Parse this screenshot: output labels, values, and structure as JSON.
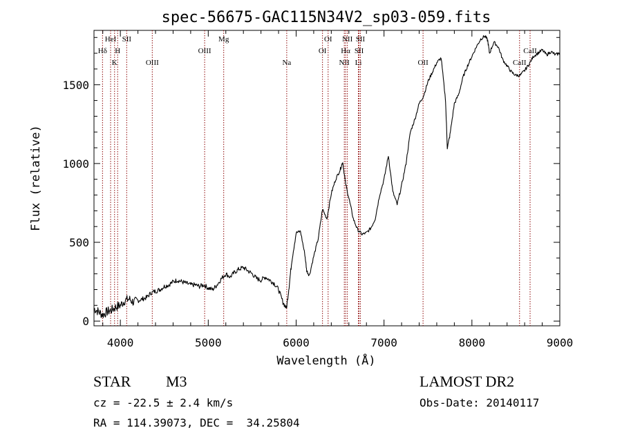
{
  "chart_data": {
    "type": "line",
    "title": "spec-56675-GAC115N34V2_sp03-059.fits",
    "xlabel": "Wavelength (Å)",
    "ylabel": "Flux (relative)",
    "xlim": [
      3700,
      9000
    ],
    "ylim": [
      -30,
      1845
    ],
    "x_ticks": [
      4000,
      5000,
      6000,
      7000,
      8000,
      9000
    ],
    "y_ticks": [
      0,
      500,
      1000,
      1500
    ],
    "grid": false,
    "series": [
      {
        "x": [
          3700,
          3750,
          3800,
          3850,
          3900,
          3950,
          4000,
          4050,
          4100,
          4150,
          4200,
          4250,
          4300,
          4350,
          4400,
          4450,
          4500,
          4550,
          4600,
          4650,
          4700,
          4750,
          4800,
          4850,
          4900,
          4950,
          5000,
          5050,
          5100,
          5150,
          5200,
          5250,
          5300,
          5350,
          5400,
          5450,
          5500,
          5550,
          5600,
          5650,
          5700,
          5750,
          5800,
          5850,
          5890,
          5920,
          5950,
          6000,
          6050,
          6100,
          6120,
          6150,
          6200,
          6250,
          6300,
          6350,
          6400,
          6450,
          6500,
          6530,
          6560,
          6600,
          6650,
          6700,
          6750,
          6800,
          6850,
          6900,
          6950,
          7000,
          7050,
          7100,
          7150,
          7200,
          7250,
          7300,
          7350,
          7400,
          7450,
          7500,
          7550,
          7600,
          7650,
          7700,
          7720,
          7750,
          7800,
          7850,
          7900,
          7950,
          8000,
          8050,
          8100,
          8150,
          8180,
          8200,
          8250,
          8300,
          8350,
          8400,
          8450,
          8500,
          8550,
          8600,
          8650,
          8700,
          8750,
          8800,
          8850,
          8900,
          8950,
          9000
        ],
        "y": [
          80,
          60,
          40,
          60,
          70,
          90,
          100,
          130,
          140,
          120,
          130,
          140,
          150,
          180,
          190,
          200,
          220,
          230,
          250,
          260,
          250,
          240,
          230,
          230,
          220,
          230,
          210,
          200,
          230,
          270,
          300,
          280,
          310,
          330,
          340,
          320,
          300,
          270,
          260,
          280,
          260,
          240,
          200,
          120,
          80,
          220,
          380,
          560,
          570,
          420,
          320,
          290,
          410,
          520,
          710,
          650,
          810,
          900,
          960,
          1010,
          880,
          780,
          650,
          580,
          550,
          560,
          590,
          650,
          800,
          900,
          1050,
          820,
          740,
          860,
          1000,
          1200,
          1280,
          1380,
          1430,
          1520,
          1580,
          1640,
          1670,
          1400,
          1100,
          1180,
          1380,
          1440,
          1550,
          1620,
          1680,
          1740,
          1790,
          1810,
          1780,
          1700,
          1770,
          1740,
          1660,
          1620,
          1580,
          1560,
          1560,
          1590,
          1630,
          1680,
          1700,
          1720,
          1690,
          1710,
          1690,
          1700
        ]
      }
    ],
    "lines": [
      {
        "x": 3797,
        "label": "Hδ",
        "row": 2
      },
      {
        "x": 3889,
        "label": "HeI",
        "row": 0
      },
      {
        "x": 3934,
        "label": "K",
        "row": 3
      },
      {
        "x": 3969,
        "label": "H",
        "row": 2
      },
      {
        "x": 4072,
        "label": "SII",
        "row": 0
      },
      {
        "x": 4363,
        "label": "OIII",
        "row": 3
      },
      {
        "x": 4959,
        "label": "OIII",
        "row": 2
      },
      {
        "x": 5176,
        "label": "Mg",
        "row": 0
      },
      {
        "x": 5893,
        "label": "Na",
        "row": 3
      },
      {
        "x": 6300,
        "label": "OI",
        "row": 2
      },
      {
        "x": 6364,
        "label": "OI",
        "row": 0
      },
      {
        "x": 6548,
        "label": "NII",
        "row": 3
      },
      {
        "x": 6563,
        "label": "Hα",
        "row": 2
      },
      {
        "x": 6583,
        "label": "NII",
        "row": 0
      },
      {
        "x": 6708,
        "label": "Li",
        "row": 3
      },
      {
        "x": 6716,
        "label": "SII",
        "row": 2
      },
      {
        "x": 6731,
        "label": "SII",
        "row": 0
      },
      {
        "x": 7444,
        "label": "OII",
        "row": 3
      },
      {
        "x": 8542,
        "label": "CaII",
        "row": 3
      },
      {
        "x": 8662,
        "label": "CaII",
        "row": 2
      }
    ]
  },
  "info": {
    "class": "STAR",
    "subclass": "M3",
    "survey": "LAMOST DR2",
    "cz": "cz = -22.5 ± 2.4 km/s",
    "obs_date": "Obs-Date: 20140117",
    "radec": "RA = 114.39073, DEC =  34.25804"
  },
  "colors": {
    "line": "#000000",
    "marker": "#8b0000"
  }
}
